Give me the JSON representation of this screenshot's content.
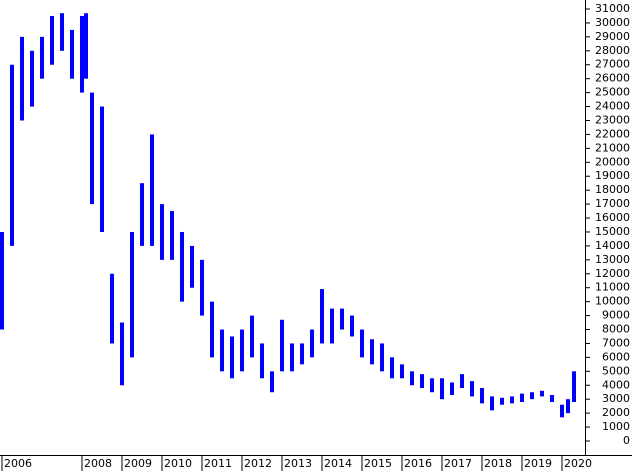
{
  "chart_data": {
    "type": "range",
    "color": "#0000ff",
    "x": [
      2006.0,
      2006.25,
      2006.5,
      2006.75,
      2007.0,
      2007.25,
      2007.5,
      2007.75,
      2008.0,
      2008.1,
      2008.25,
      2008.5,
      2008.75,
      2009.0,
      2009.25,
      2009.5,
      2009.75,
      2010.0,
      2010.25,
      2010.5,
      2010.75,
      2011.0,
      2011.25,
      2011.5,
      2011.75,
      2012.0,
      2012.25,
      2012.5,
      2012.75,
      2013.0,
      2013.25,
      2013.5,
      2013.75,
      2014.0,
      2014.25,
      2014.5,
      2014.75,
      2015.0,
      2015.25,
      2015.5,
      2015.75,
      2016.0,
      2016.25,
      2016.5,
      2016.75,
      2017.0,
      2017.25,
      2017.5,
      2017.75,
      2018.0,
      2018.25,
      2018.5,
      2018.75,
      2019.0,
      2019.25,
      2019.5,
      2019.75,
      2020.0,
      2020.15,
      2020.3
    ],
    "high": [
      15000,
      27000,
      29000,
      28000,
      29000,
      30500,
      30700,
      29500,
      30500,
      30700,
      25000,
      24000,
      12000,
      8500,
      15000,
      18500,
      22000,
      17000,
      16500,
      15000,
      14000,
      13000,
      10000,
      8000,
      7500,
      8000,
      9000,
      7000,
      5000,
      8700,
      7000,
      7000,
      8000,
      10900,
      9500,
      9500,
      9000,
      8000,
      7300,
      7000,
      6000,
      5500,
      5000,
      4800,
      4500,
      4500,
      4200,
      4800,
      4300,
      3800,
      3200,
      3100,
      3200,
      3400,
      3500,
      3600,
      3300,
      2600,
      3000,
      5000
    ],
    "low": [
      8000,
      14000,
      23000,
      24000,
      26000,
      27000,
      28000,
      26000,
      25000,
      26000,
      17000,
      15000,
      7000,
      4000,
      6000,
      14000,
      14000,
      13000,
      13000,
      10000,
      11000,
      9000,
      6000,
      5000,
      4500,
      5000,
      6000,
      4500,
      3500,
      5000,
      5000,
      5500,
      6000,
      7000,
      7000,
      8000,
      7500,
      6000,
      5500,
      5000,
      4500,
      4500,
      4000,
      3800,
      3500,
      3000,
      3300,
      3800,
      3200,
      2700,
      2200,
      2600,
      2700,
      2800,
      3000,
      3200,
      2800,
      1700,
      2000,
      2800
    ],
    "xlim": [
      2006.0,
      2020.45
    ],
    "xticks": [
      2006,
      2008,
      2009,
      2010,
      2011,
      2012,
      2013,
      2014,
      2015,
      2016,
      2017,
      2018,
      2019,
      2020
    ],
    "ylim": [
      0,
      31000
    ],
    "yticks": [
      0,
      1000,
      2000,
      3000,
      4000,
      5000,
      6000,
      7000,
      8000,
      9000,
      10000,
      11000,
      12000,
      13000,
      14000,
      15000,
      16000,
      17000,
      18000,
      19000,
      20000,
      21000,
      22000,
      23000,
      24000,
      25000,
      26000,
      27000,
      28000,
      29000,
      30000,
      31000
    ]
  }
}
